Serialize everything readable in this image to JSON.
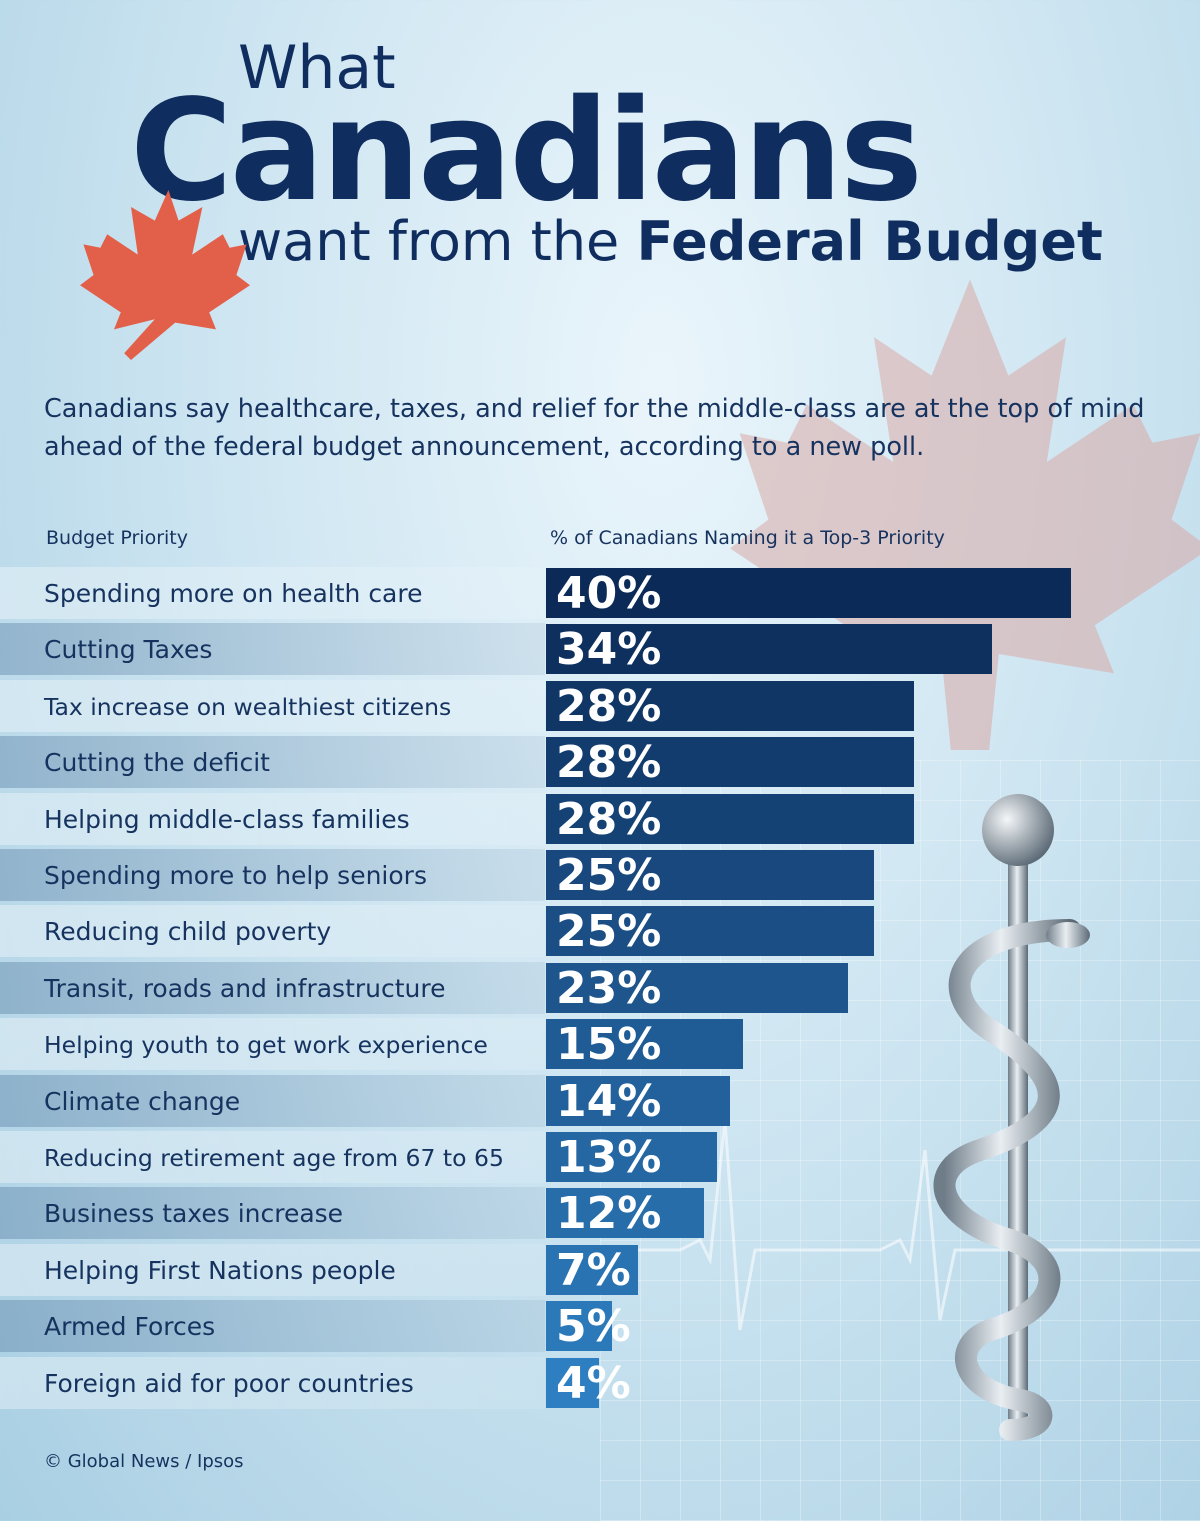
{
  "header": {
    "title_line1": "What",
    "title_line2": "Canadians",
    "title_line3_prefix": "want from the ",
    "title_line3_bold": "Federal Budget"
  },
  "subtitle": "Canadians say healthcare, taxes, and relief for the middle-class are at the top of mind ahead of the federal budget announcement, according to a new poll.",
  "columns": {
    "left": "Budget Priority",
    "right": "% of Canadians Naming it a Top-3 Priority"
  },
  "source": "© Global News / Ipsos",
  "colors": {
    "bar_top": "#0b2a57",
    "bar_bottom": "#2e7fc1",
    "text": "#16335f",
    "leaf": "#e2604a"
  },
  "chart_data": {
    "type": "bar",
    "orientation": "horizontal",
    "value_unit": "%",
    "categories": [
      "Spending more on health care",
      "Cutting Taxes",
      "Tax increase on wealthiest citizens",
      "Cutting the deficit",
      "Helping middle-class families",
      "Spending more to help seniors",
      "Reducing child poverty",
      "Transit, roads and infrastructure",
      "Helping youth to get work experience",
      "Climate change",
      "Reducing retirement age from 67 to 65",
      "Business taxes increase",
      "Helping First Nations people",
      "Armed Forces",
      "Foreign aid for poor countries"
    ],
    "values": [
      40,
      34,
      28,
      28,
      28,
      25,
      25,
      23,
      15,
      14,
      13,
      12,
      7,
      5,
      4
    ],
    "value_labels": [
      "40%",
      "34%",
      "28%",
      "28%",
      "28%",
      "25%",
      "25%",
      "23%",
      "15%",
      "14%",
      "13%",
      "12%",
      "7%",
      "5%",
      "4%"
    ],
    "xlim": [
      0,
      40
    ],
    "grid": false,
    "legend": "none"
  }
}
